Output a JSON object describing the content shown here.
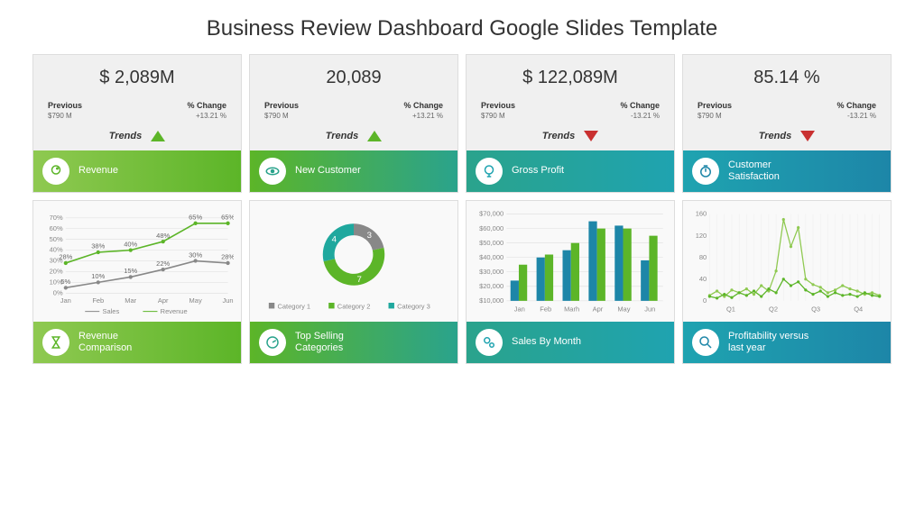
{
  "title": "Business Review Dashboard Google Slides Template",
  "colors": {
    "green": "#5cb528",
    "green_light": "#8fc951",
    "teal": "#1fa89e",
    "teal_dark": "#1d86a8",
    "red": "#c93030",
    "grid": "#ddd",
    "bg_card": "#f0f0f0"
  },
  "kpis": [
    {
      "value": "$ 2,089M",
      "prev": "$790 M",
      "change": "+13.21 %",
      "trend": "up",
      "trend_color": "#5cb528",
      "label": "Revenue",
      "icon": "head",
      "grad": [
        "#8fc951",
        "#5cb528"
      ]
    },
    {
      "value": "20,089",
      "prev": "$790 M",
      "change": "+13.21 %",
      "trend": "up",
      "trend_color": "#5cb528",
      "label": "New Customer",
      "icon": "eye",
      "grad": [
        "#5cb528",
        "#2aa38c"
      ]
    },
    {
      "value": "$ 122,089M",
      "prev": "$790 M",
      "change": "-13.21 %",
      "trend": "down",
      "trend_color": "#c93030",
      "label": "Gross Profit",
      "icon": "bulb",
      "grad": [
        "#2aa38c",
        "#1fa3b0"
      ]
    },
    {
      "value": "85.14 %",
      "prev": "$790 M",
      "change": "-13.21 %",
      "trend": "down",
      "trend_color": "#c93030",
      "label": "Customer\nSatisfaction",
      "icon": "timer",
      "grad": [
        "#1fa3b0",
        "#1d86a8"
      ]
    }
  ],
  "labels": {
    "previous": "Previous",
    "change": "% Change",
    "trends": "Trends"
  },
  "charts": [
    {
      "type": "line",
      "label": "Revenue\nComparison",
      "icon": "hourglass",
      "grad": [
        "#8fc951",
        "#5cb528"
      ],
      "categories": [
        "Jan",
        "Feb",
        "Mar",
        "Apr",
        "May",
        "Jun"
      ],
      "y_ticks": [
        0,
        10,
        20,
        30,
        40,
        50,
        60,
        70
      ],
      "series": [
        {
          "name": "Sales",
          "color": "#888",
          "values": [
            5,
            10,
            15,
            22,
            30,
            28
          ],
          "labels": [
            "5%",
            "10%",
            "15%",
            "22%",
            "30%",
            "28%"
          ]
        },
        {
          "name": "Revenue",
          "color": "#5cb528",
          "values": [
            28,
            38,
            40,
            48,
            65,
            65
          ],
          "labels": [
            "28%",
            "38%",
            "40%",
            "48%",
            "65%",
            "65%"
          ]
        }
      ]
    },
    {
      "type": "donut",
      "label": "Top Selling\nCategories",
      "icon": "gauge",
      "grad": [
        "#5cb528",
        "#2aa38c"
      ],
      "slices": [
        {
          "name": "Category 1",
          "color": "#888",
          "value": 3
        },
        {
          "name": "Category 2",
          "color": "#5cb528",
          "value": 7
        },
        {
          "name": "Category 3",
          "color": "#1fa89e",
          "value": 4
        }
      ]
    },
    {
      "type": "bar",
      "label": "Sales By Month",
      "icon": "gears",
      "grad": [
        "#2aa38c",
        "#1fa3b0"
      ],
      "categories": [
        "Jan",
        "Feb",
        "Marh",
        "Apr",
        "May",
        "Jun"
      ],
      "y_ticks": [
        10000,
        20000,
        30000,
        40000,
        50000,
        60000,
        70000
      ],
      "y_labels": [
        "$10,000",
        "$20,000",
        "$30,000",
        "$40,000",
        "$50,000",
        "$60,000",
        "$70,000"
      ],
      "series": [
        {
          "color": "#1d86a8",
          "values": [
            24000,
            40000,
            45000,
            65000,
            62000,
            38000
          ]
        },
        {
          "color": "#5cb528",
          "values": [
            35000,
            42000,
            50000,
            60000,
            60000,
            55000
          ]
        }
      ]
    },
    {
      "type": "line2",
      "label": "Profitability versus\nlast year",
      "icon": "magnify",
      "grad": [
        "#1fa3b0",
        "#1d86a8"
      ],
      "categories": [
        "Q1",
        "Q2",
        "Q3",
        "Q4"
      ],
      "y_ticks": [
        0,
        40,
        80,
        120,
        160
      ],
      "series": [
        {
          "color": "#8fc951",
          "values": [
            10,
            18,
            8,
            20,
            15,
            22,
            12,
            28,
            18,
            55,
            150,
            100,
            135,
            40,
            30,
            25,
            15,
            20,
            28,
            22,
            18,
            12,
            15,
            10
          ]
        },
        {
          "color": "#5cb528",
          "values": [
            8,
            5,
            12,
            6,
            15,
            10,
            18,
            8,
            22,
            15,
            40,
            28,
            35,
            20,
            12,
            18,
            8,
            15,
            10,
            12,
            8,
            15,
            10,
            8
          ]
        }
      ]
    }
  ]
}
